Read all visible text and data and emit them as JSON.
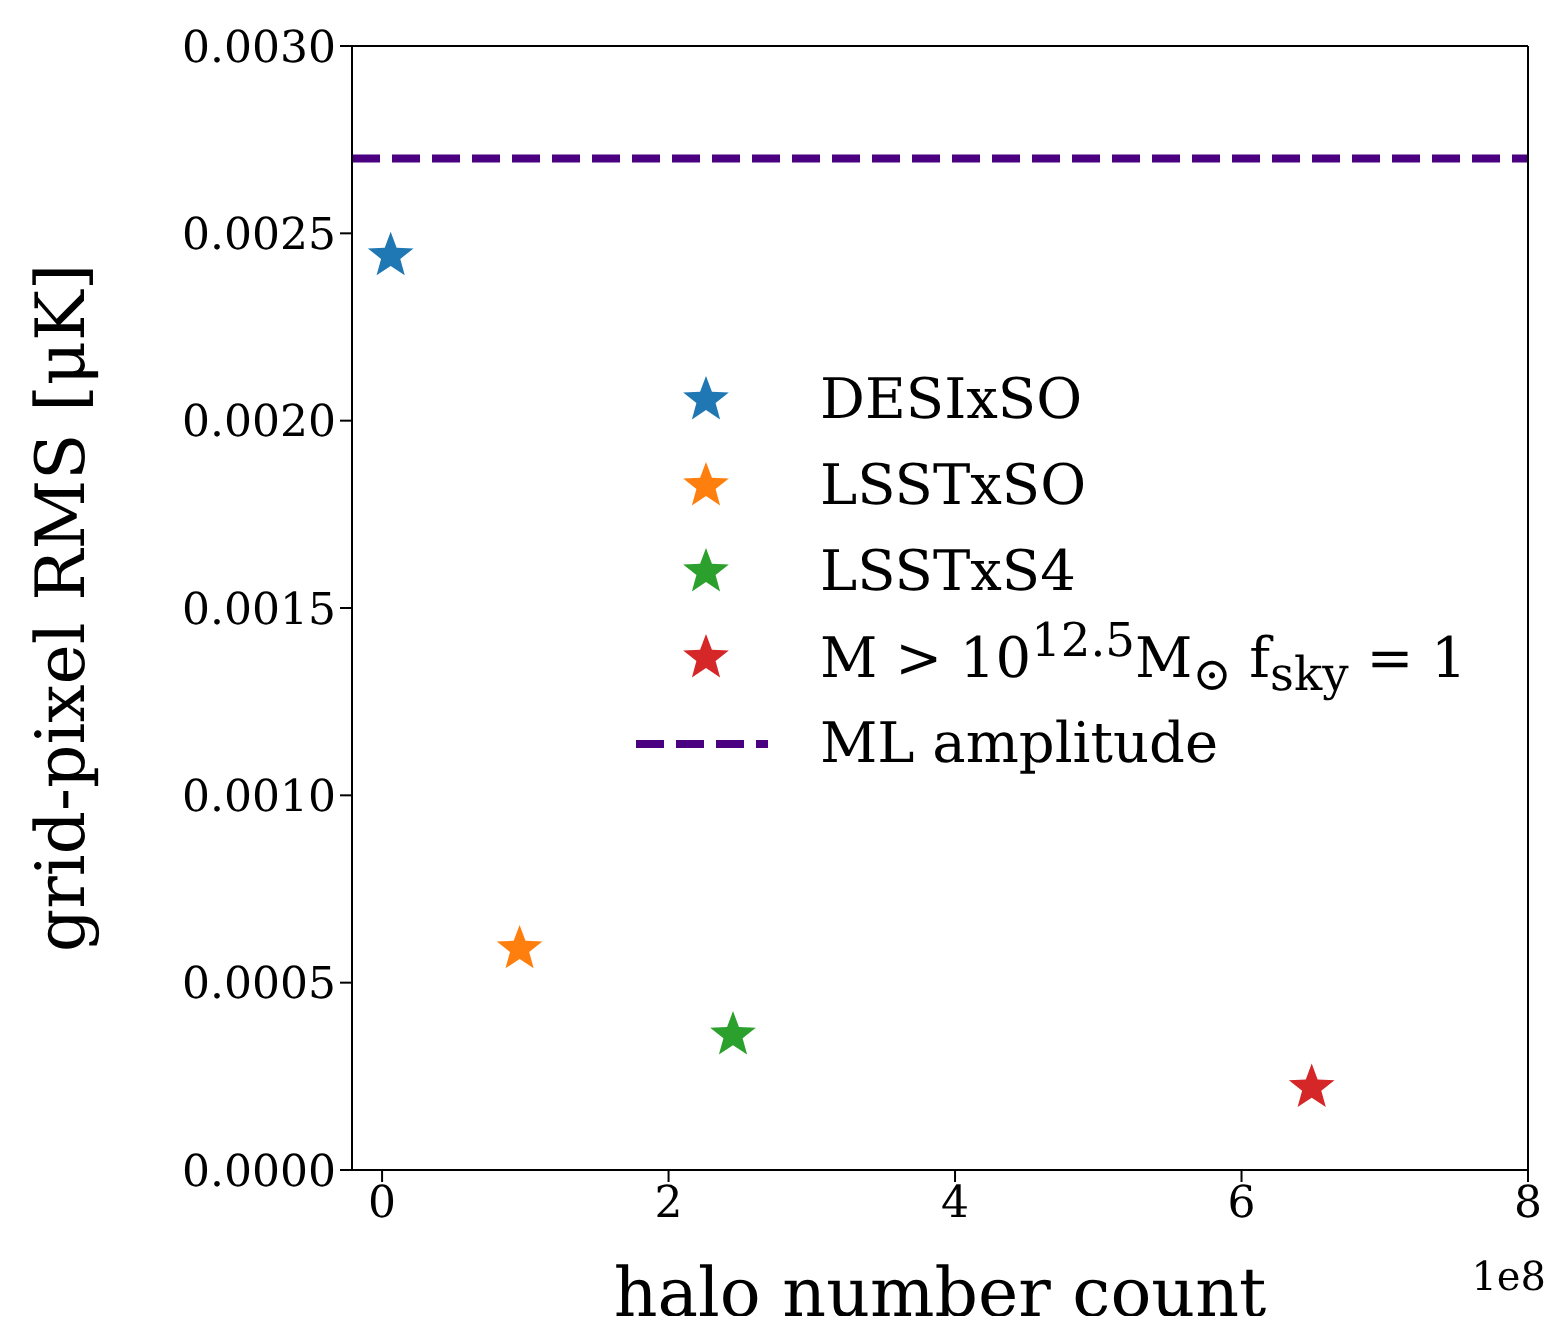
{
  "chart_data": {
    "type": "scatter",
    "xlabel": "halo number count",
    "ylabel": "grid-pixel RMS [μK]",
    "xlim": [
      -0.21,
      8
    ],
    "xticks": [
      0,
      2,
      4,
      6,
      8
    ],
    "ylim": [
      0,
      0.003
    ],
    "yticks": [
      {
        "value": 0,
        "label": "0.0000"
      },
      {
        "value": 0.0005,
        "label": "0.0005"
      },
      {
        "value": 0.001,
        "label": "0.0010"
      },
      {
        "value": 0.0015,
        "label": "0.0015"
      },
      {
        "value": 0.002,
        "label": "0.0020"
      },
      {
        "value": 0.0025,
        "label": "0.0025"
      },
      {
        "value": 0.003,
        "label": "0.0030"
      }
    ],
    "marker": "star",
    "legend": "right",
    "grid": false,
    "series": [
      {
        "name": "DESIxSO",
        "color": "#1f77b4",
        "x": [
          0.06
        ],
        "values": [
          0.00244
        ]
      },
      {
        "name": "LSSTxSO",
        "color": "#ff7f0e",
        "x": [
          0.96
        ],
        "values": [
          0.00059
        ]
      },
      {
        "name": "LSSTxS4",
        "color": "#2ca02c",
        "x": [
          2.45
        ],
        "values": [
          0.00036
        ]
      },
      {
        "name": "M > 10$^{12.5}$M$_{⊙}$  f$_{sky}$ = 1",
        "color": "#d62728",
        "x": [
          6.49
        ],
        "values": [
          0.00022
        ]
      }
    ],
    "ref_lines": [
      {
        "axis": "y",
        "value": 0.0027,
        "label": "ML amplitude",
        "color": "#4b0082",
        "line_style": "dashed"
      }
    ],
    "annotations": [
      "1e8"
    ]
  }
}
